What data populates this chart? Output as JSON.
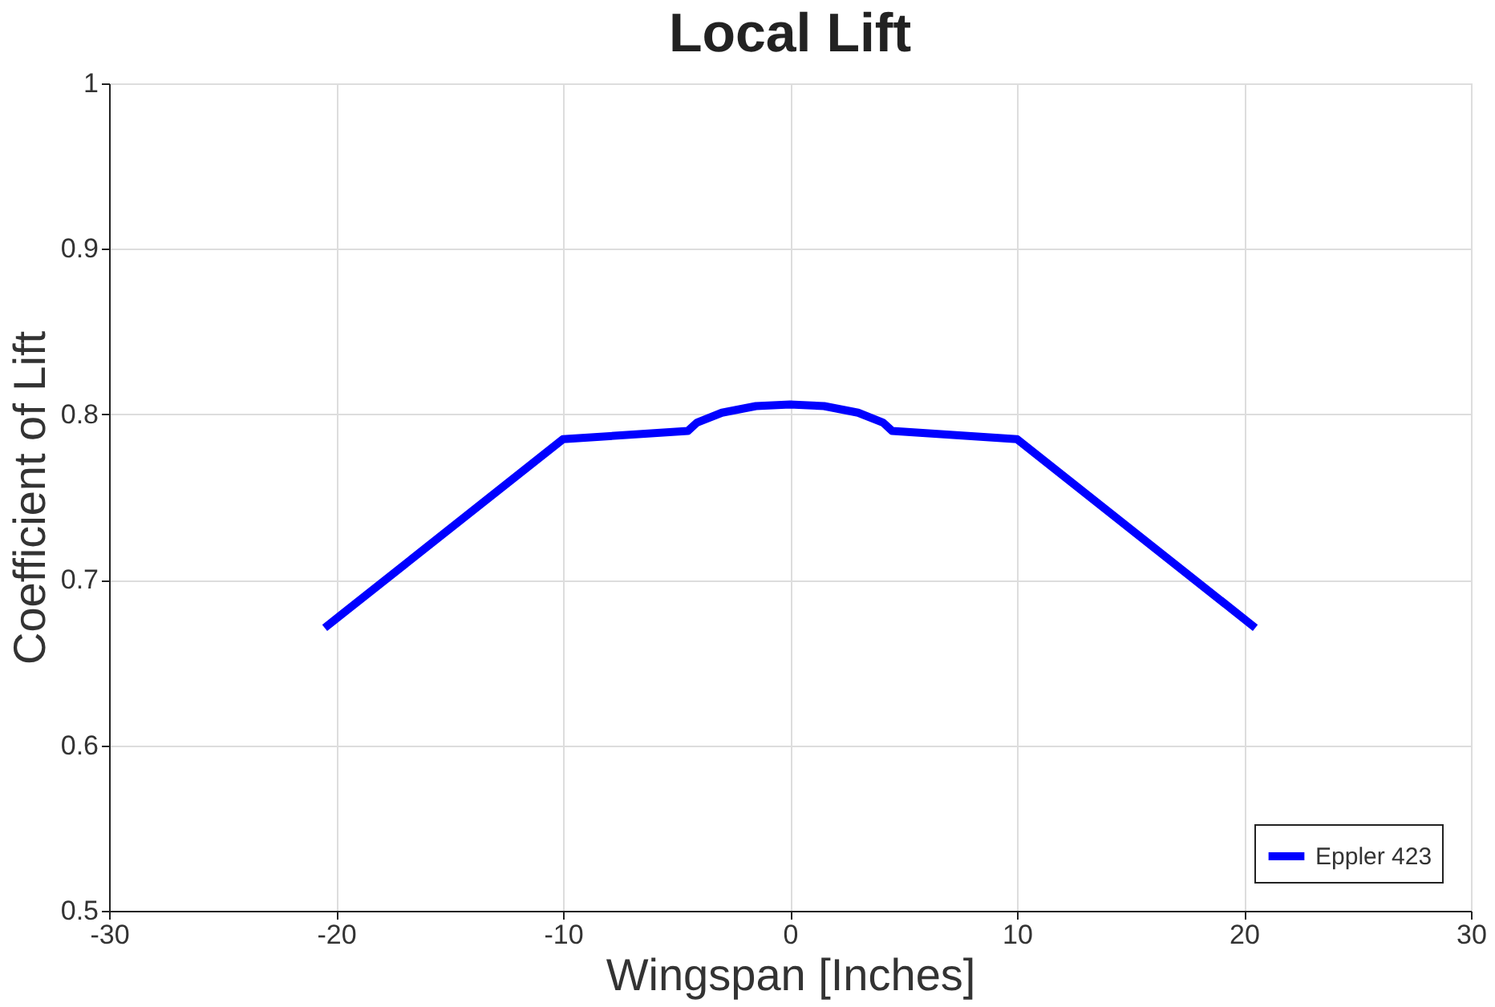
{
  "chart_data": {
    "type": "line",
    "title": "Local Lift",
    "xlabel": "Wingspan [Inches]",
    "ylabel": "Coefficient of Lift",
    "x": [
      -20.5,
      -10,
      -4.5,
      -4.1,
      -3,
      -1.5,
      0,
      1.5,
      3,
      4.1,
      4.5,
      10,
      20.5
    ],
    "series": [
      {
        "name": "Eppler 423",
        "color": "#0000ff",
        "values": [
          0.671,
          0.785,
          0.79,
          0.795,
          0.801,
          0.805,
          0.806,
          0.805,
          0.801,
          0.795,
          0.79,
          0.785,
          0.671
        ]
      }
    ],
    "xlim": [
      -30,
      30
    ],
    "xticks": [
      -30,
      -20,
      -10,
      0,
      10,
      20,
      30
    ],
    "ylim": [
      0.5,
      1
    ],
    "yticks": [
      0.5,
      0.6,
      0.7,
      0.8,
      0.9,
      1
    ],
    "grid": true,
    "legend": "bottom right",
    "marker": "none",
    "line_style": "solid"
  }
}
